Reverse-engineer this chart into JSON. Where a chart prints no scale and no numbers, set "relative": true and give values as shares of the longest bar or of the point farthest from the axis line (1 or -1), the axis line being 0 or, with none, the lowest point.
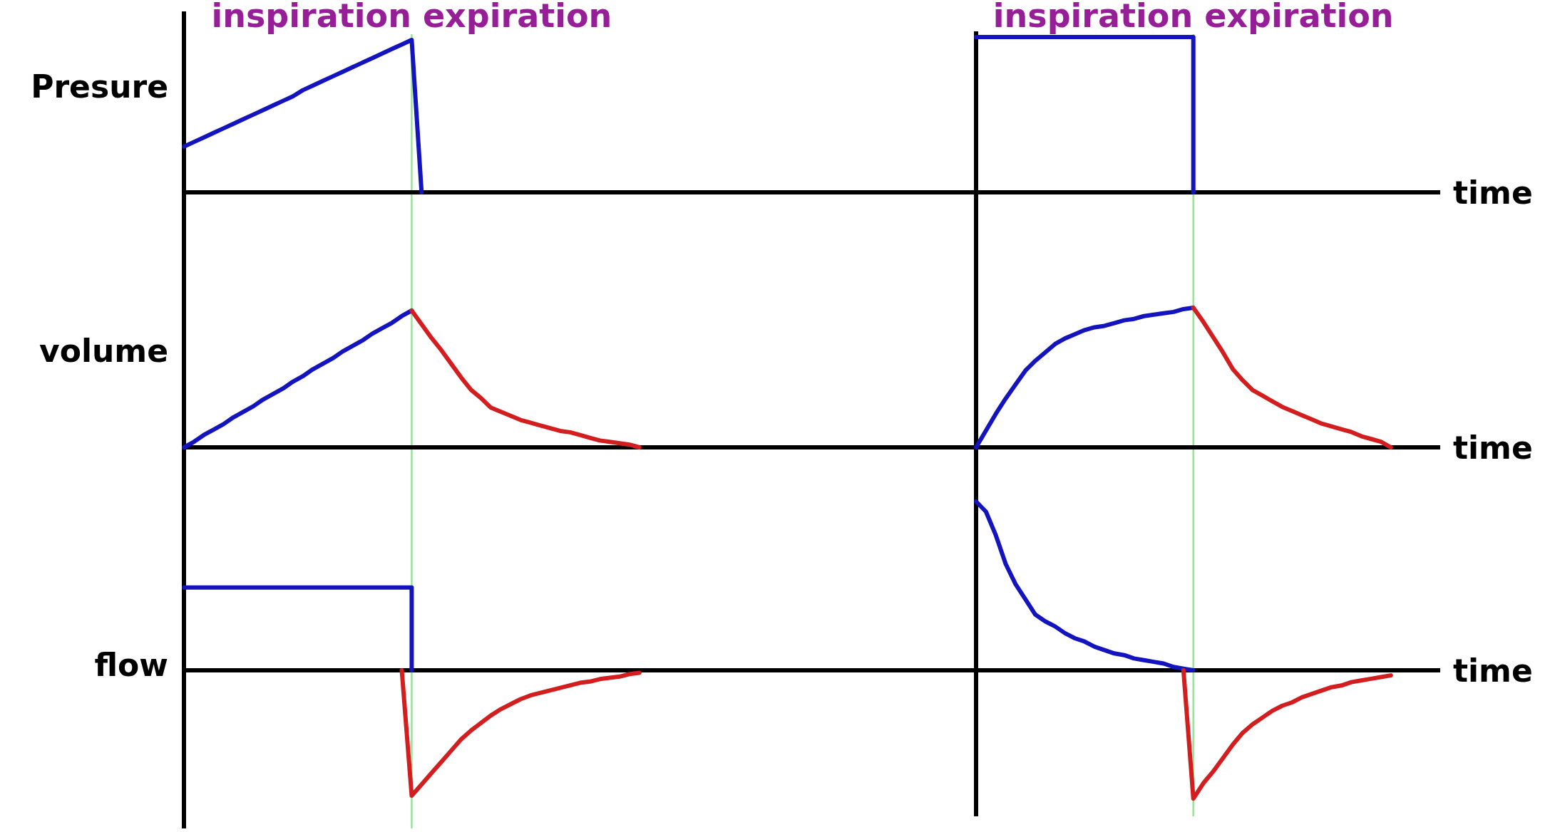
{
  "chart_data": [
    {
      "type": "line",
      "ylabel": "Presure",
      "relative": true,
      "tick_labels": false,
      "annotations": [
        "inspiration expiration"
      ],
      "categories": [
        null,
        null,
        null,
        null,
        null,
        null,
        null,
        null,
        null,
        null,
        null,
        null,
        null,
        null,
        null,
        null,
        null,
        null,
        null,
        null,
        null,
        null,
        null,
        null,
        null,
        null,
        null,
        null,
        null,
        null,
        null,
        null,
        null,
        null,
        null,
        null,
        null,
        null,
        null,
        null,
        null,
        null,
        null,
        null,
        null,
        null,
        null,
        null,
        null,
        null,
        null,
        null,
        null,
        null,
        null,
        null,
        null,
        null,
        null,
        null,
        null,
        null,
        null,
        null,
        null,
        null,
        null,
        null,
        null,
        null,
        null,
        null,
        null,
        null,
        null,
        null,
        null,
        null,
        null,
        null,
        null
      ],
      "series": [
        {
          "color": "#1414be",
          "values": [
            0.3,
            0.33,
            0.36,
            0.39,
            0.42,
            0.45,
            0.48,
            0.51,
            0.54,
            0.57,
            0.6,
            0.63,
            0.67,
            0.7,
            0.73,
            0.76,
            0.79,
            0.82,
            0.85,
            0.88,
            0.91,
            0.94,
            0.97,
            1,
            0,
            null,
            null,
            null,
            null,
            null,
            null,
            null,
            null,
            null,
            null,
            null,
            null,
            null,
            null,
            null,
            null,
            null,
            null,
            null,
            null,
            null,
            null,
            null,
            null,
            null,
            null,
            null,
            null,
            null,
            null,
            null,
            null,
            null,
            null,
            null,
            null,
            null,
            null,
            null,
            null,
            null,
            null,
            null,
            null,
            null,
            null,
            null,
            null,
            null,
            null,
            null,
            null,
            null,
            null,
            null,
            null
          ]
        }
      ]
    },
    {
      "type": "line",
      "xlabel": "time",
      "relative": true,
      "tick_labels": false,
      "annotations": [
        "inspiration expiration"
      ],
      "categories": [
        null,
        null,
        null,
        null,
        null,
        null,
        null,
        null,
        null,
        null,
        null,
        null,
        null,
        null,
        null,
        null,
        null,
        null,
        null,
        null,
        null,
        null,
        null,
        null,
        null,
        null,
        null,
        null,
        null,
        null,
        null,
        null,
        null,
        null,
        null,
        null,
        null,
        null,
        null,
        null,
        null,
        null,
        null,
        null,
        null,
        null,
        null,
        null
      ],
      "series": [
        {
          "type": "step",
          "color": "#1414be",
          "values": [
            1,
            1,
            1,
            1,
            1,
            1,
            1,
            1,
            1,
            1,
            1,
            1,
            1,
            1,
            1,
            1,
            1,
            1,
            1,
            1,
            1,
            1,
            0,
            null,
            null,
            null,
            null,
            null,
            null,
            null,
            null,
            null,
            null,
            null,
            null,
            null,
            null,
            null,
            null,
            null,
            null,
            null,
            null,
            null,
            null,
            null,
            null,
            null
          ]
        }
      ]
    },
    {
      "type": "line",
      "ylabel": "volume",
      "relative": true,
      "tick_labels": false,
      "categories": [
        null,
        null,
        null,
        null,
        null,
        null,
        null,
        null,
        null,
        null,
        null,
        null,
        null,
        null,
        null,
        null,
        null,
        null,
        null,
        null,
        null,
        null,
        null,
        null,
        null,
        null,
        null,
        null,
        null,
        null,
        null,
        null,
        null,
        null,
        null,
        null,
        null,
        null,
        null,
        null,
        null,
        null,
        null,
        null,
        null,
        null,
        null,
        null,
        null,
        null,
        null,
        null,
        null,
        null,
        null,
        null,
        null,
        null,
        null,
        null,
        null,
        null,
        null,
        null,
        null,
        null,
        null,
        null,
        null,
        null,
        null,
        null,
        null,
        null,
        null,
        null,
        null,
        null,
        null,
        null,
        null
      ],
      "series": [
        {
          "color": "#1414be",
          "values": [
            0,
            0.04,
            0.09,
            0.13,
            0.17,
            0.22,
            0.26,
            0.3,
            0.35,
            0.39,
            0.43,
            0.48,
            0.52,
            0.57,
            0.61,
            0.65,
            0.7,
            0.74,
            0.78,
            0.83,
            0.87,
            0.91,
            0.96,
            1,
            null,
            null,
            null,
            null,
            null,
            null,
            null,
            null,
            null,
            null,
            null,
            null,
            null,
            null,
            null,
            null,
            null,
            null,
            null,
            null,
            null,
            null,
            null,
            null,
            null,
            null,
            null,
            null,
            null,
            null,
            null,
            null,
            null,
            null,
            null,
            null,
            null,
            null,
            null,
            null,
            null,
            null,
            null,
            null,
            null,
            null,
            null,
            null,
            null,
            null,
            null,
            null,
            null,
            null,
            null,
            null,
            null
          ]
        },
        {
          "color": "#d21e1e",
          "values": [
            null,
            null,
            null,
            null,
            null,
            null,
            null,
            null,
            null,
            null,
            null,
            null,
            null,
            null,
            null,
            null,
            null,
            null,
            null,
            null,
            null,
            null,
            null,
            1,
            0.9,
            0.8,
            0.71,
            0.61,
            0.51,
            0.42,
            0.36,
            0.29,
            0.26,
            0.23,
            0.2,
            0.18,
            0.16,
            0.14,
            0.12,
            0.11,
            0.09,
            0.07,
            0.05,
            0.04,
            0.03,
            0.02,
            0,
            null,
            null,
            null,
            null,
            null,
            null,
            null,
            null,
            null,
            null,
            null,
            null,
            null,
            null,
            null,
            null,
            null,
            null,
            null,
            null,
            null,
            null,
            null,
            null,
            null,
            null,
            null,
            null,
            null,
            null,
            null,
            null,
            null,
            null
          ]
        }
      ]
    },
    {
      "type": "line",
      "xlabel": "time",
      "relative": true,
      "tick_labels": false,
      "categories": [
        null,
        null,
        null,
        null,
        null,
        null,
        null,
        null,
        null,
        null,
        null,
        null,
        null,
        null,
        null,
        null,
        null,
        null,
        null,
        null,
        null,
        null,
        null,
        null,
        null,
        null,
        null,
        null,
        null,
        null,
        null,
        null,
        null,
        null,
        null,
        null,
        null,
        null,
        null,
        null,
        null,
        null,
        null,
        null,
        null,
        null,
        null,
        null
      ],
      "series": [
        {
          "color": "#1414be",
          "values": [
            0,
            0.12,
            0.24,
            0.35,
            0.45,
            0.55,
            0.62,
            0.68,
            0.74,
            0.78,
            0.81,
            0.84,
            0.86,
            0.87,
            0.89,
            0.91,
            0.92,
            0.94,
            0.95,
            0.96,
            0.97,
            0.99,
            1,
            null,
            null,
            null,
            null,
            null,
            null,
            null,
            null,
            null,
            null,
            null,
            null,
            null,
            null,
            null,
            null,
            null,
            null,
            null,
            null,
            null,
            null,
            null,
            null,
            null
          ]
        },
        {
          "color": "#d21e1e",
          "values": [
            null,
            null,
            null,
            null,
            null,
            null,
            null,
            null,
            null,
            null,
            null,
            null,
            null,
            null,
            null,
            null,
            null,
            null,
            null,
            null,
            null,
            null,
            1,
            0.9,
            0.79,
            0.68,
            0.56,
            0.48,
            0.41,
            0.37,
            0.33,
            0.29,
            0.26,
            0.23,
            0.2,
            0.17,
            0.15,
            0.13,
            0.11,
            0.08,
            0.06,
            0.04,
            0,
            null,
            null,
            null,
            null,
            null
          ]
        }
      ]
    },
    {
      "type": "line",
      "ylabel": "flow",
      "relative": true,
      "tick_labels": false,
      "categories": [
        null,
        null,
        null,
        null,
        null,
        null,
        null,
        null,
        null,
        null,
        null,
        null,
        null,
        null,
        null,
        null,
        null,
        null,
        null,
        null,
        null,
        null,
        null,
        null,
        null,
        null,
        null,
        null,
        null,
        null,
        null,
        null,
        null,
        null,
        null,
        null,
        null,
        null,
        null,
        null,
        null,
        null,
        null,
        null,
        null,
        null,
        null,
        null,
        null,
        null,
        null,
        null,
        null,
        null,
        null,
        null,
        null,
        null,
        null,
        null,
        null,
        null,
        null,
        null,
        null,
        null,
        null,
        null,
        null,
        null,
        null,
        null,
        null,
        null,
        null,
        null,
        null,
        null,
        null,
        null,
        null
      ],
      "series": [
        {
          "type": "step",
          "color": "#1414be",
          "values": [
            0.66,
            0.66,
            0.66,
            0.66,
            0.66,
            0.66,
            0.66,
            0.66,
            0.66,
            0.66,
            0.66,
            0.66,
            0.66,
            0.66,
            0.66,
            0.66,
            0.66,
            0.66,
            0.66,
            0.66,
            0.66,
            0.66,
            0.66,
            0,
            null,
            null,
            null,
            null,
            null,
            null,
            null,
            null,
            null,
            null,
            null,
            null,
            null,
            null,
            null,
            null,
            null,
            null,
            null,
            null,
            null,
            null,
            null,
            null,
            null,
            null,
            null,
            null,
            null,
            null,
            null,
            null,
            null,
            null,
            null,
            null,
            null,
            null,
            null,
            null,
            null,
            null,
            null,
            null,
            null,
            null,
            null,
            null,
            null,
            null,
            null,
            null,
            null,
            null,
            null,
            null,
            null
          ]
        },
        {
          "color": "#d21e1e",
          "values": [
            null,
            null,
            null,
            null,
            null,
            null,
            null,
            null,
            null,
            null,
            null,
            null,
            null,
            null,
            null,
            null,
            null,
            null,
            null,
            null,
            null,
            null,
            0,
            -1,
            -0.91,
            -0.82,
            -0.73,
            -0.64,
            -0.55,
            -0.48,
            -0.42,
            -0.36,
            -0.31,
            -0.27,
            -0.23,
            -0.2,
            -0.18,
            -0.16,
            -0.14,
            -0.12,
            -0.1,
            -0.09,
            -0.07,
            -0.06,
            -0.05,
            -0.03,
            -0.02,
            null,
            null,
            null,
            null,
            null,
            null,
            null,
            null,
            null,
            null,
            null,
            null,
            null,
            null,
            null,
            null,
            null,
            null,
            null,
            null,
            null,
            null,
            null,
            null,
            null,
            null,
            null,
            null,
            null,
            null,
            null,
            null,
            null,
            null
          ]
        }
      ]
    },
    {
      "type": "line",
      "xlabel": "time",
      "relative": true,
      "tick_labels": false,
      "categories": [
        null,
        null,
        null,
        null,
        null,
        null,
        null,
        null,
        null,
        null,
        null,
        null,
        null,
        null,
        null,
        null,
        null,
        null,
        null,
        null,
        null,
        null,
        null,
        null,
        null,
        null,
        null,
        null,
        null,
        null,
        null,
        null,
        null,
        null,
        null,
        null,
        null,
        null,
        null,
        null,
        null,
        null,
        null,
        null,
        null,
        null,
        null,
        null
      ],
      "series": [
        {
          "color": "#1414be",
          "values": [
            1,
            0.94,
            0.8,
            0.63,
            0.51,
            0.42,
            0.33,
            0.29,
            0.26,
            0.22,
            0.19,
            0.17,
            0.14,
            0.12,
            0.1,
            0.09,
            0.07,
            0.06,
            0.05,
            0.04,
            0.02,
            0.01,
            0,
            null,
            null,
            null,
            null,
            null,
            null,
            null,
            null,
            null,
            null,
            null,
            null,
            null,
            null,
            null,
            null,
            null,
            null,
            null,
            null,
            null,
            null,
            null,
            null,
            null
          ]
        },
        {
          "color": "#d21e1e",
          "values": [
            null,
            null,
            null,
            null,
            null,
            null,
            null,
            null,
            null,
            null,
            null,
            null,
            null,
            null,
            null,
            null,
            null,
            null,
            null,
            null,
            null,
            0,
            -0.76,
            -0.67,
            -0.6,
            -0.52,
            -0.44,
            -0.37,
            -0.32,
            -0.28,
            -0.24,
            -0.21,
            -0.19,
            -0.16,
            -0.14,
            -0.12,
            -0.1,
            -0.09,
            -0.07,
            -0.06,
            -0.05,
            -0.04,
            -0.03,
            null,
            null,
            null,
            null,
            null
          ]
        }
      ]
    }
  ]
}
